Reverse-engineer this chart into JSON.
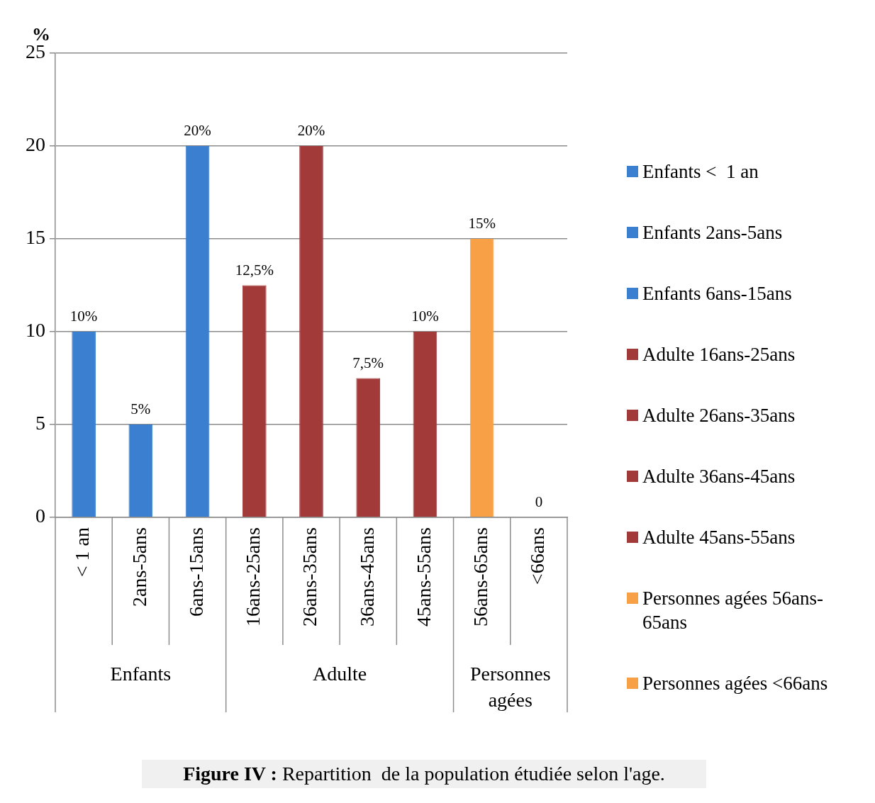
{
  "chart_data": {
    "type": "bar",
    "ylabel": "%",
    "categories": [
      "< 1 an",
      "2ans-5ans",
      "6ans-15ans",
      "16ans-25ans",
      "26ans-35ans",
      "36ans-45ans",
      "45ans-55ans",
      "56ans-65ans",
      "<66ans"
    ],
    "series": [
      {
        "name": "Enfants <  1 an",
        "color": "#3b7fd0",
        "values": [
          10,
          null,
          null,
          null,
          null,
          null,
          null,
          null,
          null
        ],
        "value_labels": [
          "10%",
          null,
          null,
          null,
          null,
          null,
          null,
          null,
          null
        ]
      },
      {
        "name": "Enfants 2ans-5ans",
        "color": "#3b7fd0",
        "values": [
          null,
          5,
          null,
          null,
          null,
          null,
          null,
          null,
          null
        ],
        "value_labels": [
          null,
          "5%",
          null,
          null,
          null,
          null,
          null,
          null,
          null
        ]
      },
      {
        "name": "Enfants 6ans-15ans",
        "color": "#3b7fd0",
        "values": [
          null,
          null,
          20,
          null,
          null,
          null,
          null,
          null,
          null
        ],
        "value_labels": [
          null,
          null,
          "20%",
          null,
          null,
          null,
          null,
          null,
          null
        ]
      },
      {
        "name": "Adulte 16ans-25ans",
        "color": "#a33a3a",
        "values": [
          null,
          null,
          null,
          12.5,
          null,
          null,
          null,
          null,
          null
        ],
        "value_labels": [
          null,
          null,
          null,
          "12,5%",
          null,
          null,
          null,
          null,
          null
        ]
      },
      {
        "name": "Adulte 26ans-35ans",
        "color": "#a33a3a",
        "values": [
          null,
          null,
          null,
          null,
          20,
          null,
          null,
          null,
          null
        ],
        "value_labels": [
          null,
          null,
          null,
          null,
          "20%",
          null,
          null,
          null,
          null
        ]
      },
      {
        "name": "Adulte 36ans-45ans",
        "color": "#a33a3a",
        "values": [
          null,
          null,
          null,
          null,
          null,
          7.5,
          null,
          null,
          null
        ],
        "value_labels": [
          null,
          null,
          null,
          null,
          null,
          "7,5%",
          null,
          null,
          null
        ]
      },
      {
        "name": "Adulte 45ans-55ans",
        "color": "#a33a3a",
        "values": [
          null,
          null,
          null,
          null,
          null,
          null,
          10,
          null,
          null
        ],
        "value_labels": [
          null,
          null,
          null,
          null,
          null,
          null,
          "10%",
          null,
          null
        ]
      },
      {
        "name": "Personnes agées 56ans-65ans",
        "color": "#f7a045",
        "values": [
          null,
          null,
          null,
          null,
          null,
          null,
          null,
          15,
          null
        ],
        "value_labels": [
          null,
          null,
          null,
          null,
          null,
          null,
          null,
          "15%",
          null
        ]
      },
      {
        "name": "Personnes agées <66ans",
        "color": "#f7a045",
        "values": [
          null,
          null,
          null,
          null,
          null,
          null,
          null,
          null,
          0
        ],
        "value_labels": [
          null,
          null,
          null,
          null,
          null,
          null,
          null,
          null,
          "0"
        ]
      }
    ],
    "ylim": [
      0,
      25
    ],
    "yticks": [
      0,
      5,
      10,
      15,
      20,
      25
    ],
    "grid": "y",
    "legend": "right",
    "annotations": [
      "Enfants",
      "Adulte",
      "Personnes agées",
      "Figure IV : Repartition  de la population étudiée selon l'age."
    ]
  }
}
